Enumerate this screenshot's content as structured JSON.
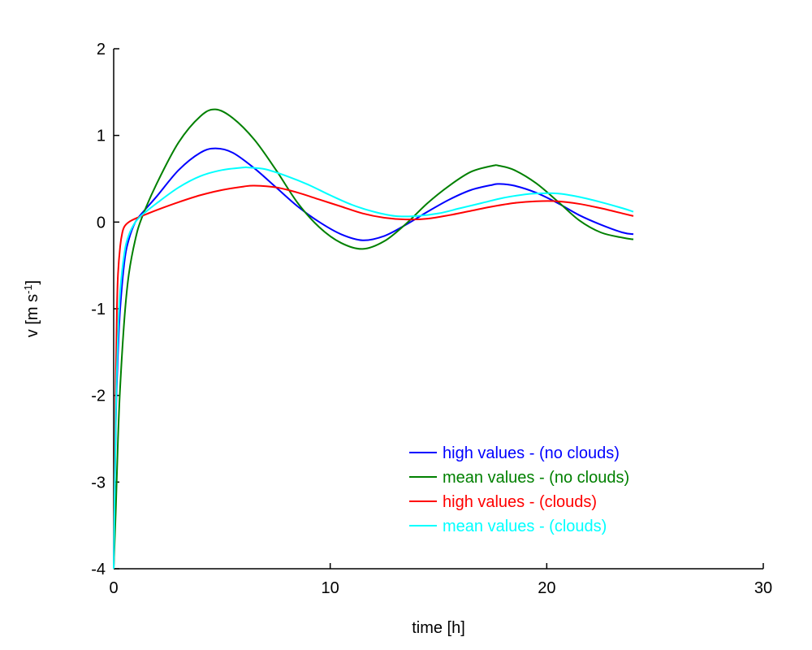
{
  "chart_data": {
    "type": "line",
    "title": "",
    "xlabel": "time [h]",
    "ylabel_main": "v [m s",
    "ylabel_sup": "-1",
    "ylabel_close": "]",
    "xlim": [
      0,
      30
    ],
    "ylim": [
      -4,
      2
    ],
    "xticks": [
      0,
      10,
      20,
      30
    ],
    "yticks": [
      -4,
      -3,
      -2,
      -1,
      0,
      1,
      2
    ],
    "grid": false,
    "legend_position": "bottom-right",
    "series": [
      {
        "name": "high values - (no clouds)",
        "color": "#0000ff",
        "x": [
          0,
          0.1,
          0.2,
          0.3,
          0.5,
          0.7,
          1.0,
          1.3,
          2,
          3,
          4,
          4.7,
          5.5,
          6.5,
          7.5,
          8.5,
          9.5,
          10.5,
          11.5,
          12.5,
          13.5,
          14.5,
          15.5,
          16.5,
          17.5,
          17.8,
          18.5,
          19.5,
          20.5,
          21.5,
          22.5,
          23.5,
          24
        ],
        "y": [
          -4.0,
          -2.3,
          -1.5,
          -1.0,
          -0.45,
          -0.2,
          0.0,
          0.1,
          0.3,
          0.6,
          0.8,
          0.85,
          0.8,
          0.62,
          0.4,
          0.18,
          0.0,
          -0.14,
          -0.21,
          -0.16,
          -0.03,
          0.12,
          0.26,
          0.37,
          0.43,
          0.44,
          0.42,
          0.34,
          0.22,
          0.08,
          -0.03,
          -0.12,
          -0.14
        ]
      },
      {
        "name": "mean values - (no clouds)",
        "color": "#008000",
        "x": [
          0,
          0.1,
          0.2,
          0.3,
          0.5,
          0.7,
          1.0,
          1.3,
          2,
          3,
          4,
          4.7,
          5.5,
          6.5,
          7.5,
          8.5,
          9.5,
          10.5,
          11.5,
          12.5,
          13.5,
          14.5,
          15.5,
          16.5,
          17.5,
          17.8,
          18.5,
          19.5,
          20.5,
          21.5,
          22.5,
          23.5,
          24
        ],
        "y": [
          -4.0,
          -3.3,
          -2.5,
          -1.9,
          -1.1,
          -0.6,
          -0.2,
          0.05,
          0.45,
          0.92,
          1.22,
          1.3,
          1.2,
          0.95,
          0.6,
          0.22,
          -0.06,
          -0.24,
          -0.31,
          -0.22,
          -0.02,
          0.22,
          0.42,
          0.58,
          0.65,
          0.65,
          0.6,
          0.45,
          0.24,
          0.02,
          -0.12,
          -0.18,
          -0.2
        ]
      },
      {
        "name": "high values - (clouds)",
        "color": "#ff0000",
        "x": [
          0,
          0.05,
          0.1,
          0.15,
          0.2,
          0.3,
          0.4,
          0.5,
          0.7,
          1.0,
          1.5,
          2,
          3,
          4,
          5,
          6,
          6.5,
          7.5,
          8.5,
          9.5,
          10.5,
          11.5,
          12.5,
          13.5,
          14.5,
          15.5,
          16.5,
          17.5,
          18.5,
          19.5,
          20.5,
          21.5,
          22.5,
          23.5,
          24
        ],
        "y": [
          -4.0,
          -2.8,
          -1.8,
          -1.0,
          -0.6,
          -0.28,
          -0.12,
          -0.05,
          0.0,
          0.04,
          0.09,
          0.14,
          0.23,
          0.31,
          0.37,
          0.41,
          0.42,
          0.4,
          0.34,
          0.26,
          0.18,
          0.1,
          0.05,
          0.03,
          0.04,
          0.08,
          0.13,
          0.18,
          0.22,
          0.24,
          0.24,
          0.21,
          0.16,
          0.1,
          0.07
        ]
      },
      {
        "name": "mean values - (clouds)",
        "color": "#00ffff",
        "x": [
          0,
          0.1,
          0.2,
          0.3,
          0.5,
          0.7,
          1.0,
          1.3,
          2,
          3,
          4,
          5,
          6,
          6.2,
          7,
          8,
          9,
          10,
          11,
          12,
          13,
          14,
          15,
          16,
          17,
          18,
          19,
          19.5,
          20.5,
          21.5,
          22.5,
          23.5,
          24
        ],
        "y": [
          -4.0,
          -2.2,
          -1.3,
          -0.8,
          -0.35,
          -0.15,
          0.0,
          0.08,
          0.22,
          0.4,
          0.53,
          0.6,
          0.63,
          0.63,
          0.61,
          0.53,
          0.43,
          0.31,
          0.2,
          0.12,
          0.07,
          0.07,
          0.1,
          0.16,
          0.22,
          0.28,
          0.32,
          0.33,
          0.33,
          0.29,
          0.23,
          0.16,
          0.12
        ]
      }
    ]
  }
}
